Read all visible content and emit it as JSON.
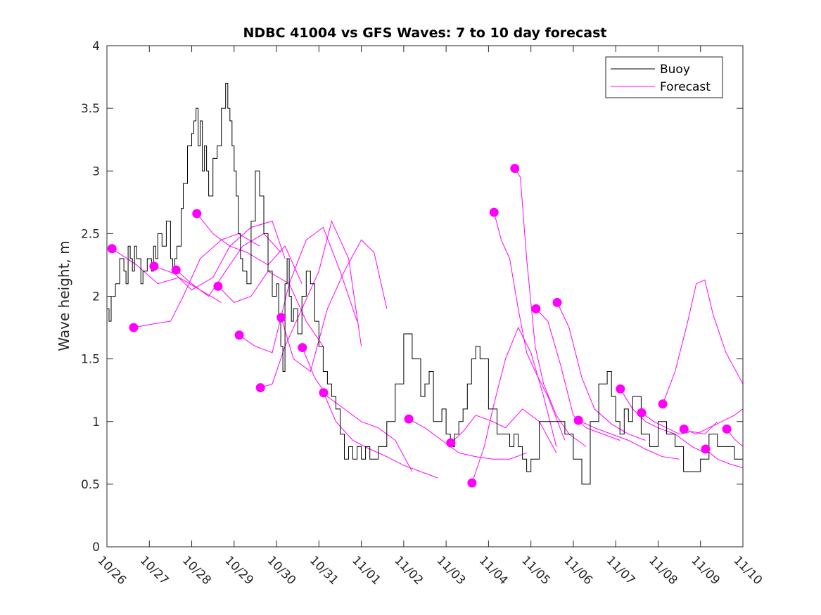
{
  "chart_data": {
    "type": "line",
    "title": "NDBC 41004 vs GFS Waves: 7 to 10 day forecast",
    "xlabel": "",
    "ylabel": "Wave height, m",
    "xlim": [
      0,
      15
    ],
    "ylim": [
      0,
      4
    ],
    "x_unit": "days since 10/26",
    "x_tick_labels": [
      "10/26",
      "10/27",
      "10/28",
      "10/29",
      "10/30",
      "10/31",
      "11/01",
      "11/02",
      "11/03",
      "11/04",
      "11/05",
      "11/06",
      "11/07",
      "11/08",
      "11/09",
      "11/10"
    ],
    "y_tick_labels": [
      "0",
      "0.5",
      "1",
      "1.5",
      "2",
      "2.5",
      "3",
      "3.5",
      "4"
    ],
    "y_ticks": [
      0,
      0.5,
      1,
      1.5,
      2,
      2.5,
      3,
      3.5,
      4
    ],
    "grid": false,
    "legend": {
      "position": "top-right",
      "entries": [
        {
          "label": "Buoy",
          "color": "#000000"
        },
        {
          "label": "Forecast",
          "color": "#ff00ff"
        }
      ]
    },
    "colors": {
      "buoy": "#000000",
      "forecast": "#ff00ff"
    },
    "series": [
      {
        "name": "Buoy",
        "x": [
          0,
          0.05,
          0.1,
          0.2,
          0.3,
          0.4,
          0.45,
          0.5,
          0.55,
          0.6,
          0.65,
          0.7,
          0.75,
          0.8,
          0.85,
          0.9,
          0.95,
          1.0,
          1.05,
          1.1,
          1.15,
          1.2,
          1.3,
          1.4,
          1.5,
          1.55,
          1.6,
          1.65,
          1.7,
          1.75,
          1.8,
          1.9,
          2.0,
          2.05,
          2.1,
          2.15,
          2.2,
          2.25,
          2.3,
          2.35,
          2.4,
          2.5,
          2.6,
          2.7,
          2.8,
          2.85,
          2.9,
          2.95,
          3.0,
          3.05,
          3.1,
          3.15,
          3.2,
          3.3,
          3.4,
          3.5,
          3.6,
          3.7,
          3.8,
          3.9,
          4.0,
          4.05,
          4.1,
          4.15,
          4.2,
          4.25,
          4.3,
          4.35,
          4.4,
          4.5,
          4.6,
          4.7,
          4.8,
          4.9,
          5.0,
          5.1,
          5.2,
          5.3,
          5.4,
          5.5,
          5.6,
          5.7,
          5.8,
          5.9,
          6.0,
          6.1,
          6.2,
          6.4,
          6.6,
          6.8,
          7.0,
          7.2,
          7.4,
          7.5,
          7.6,
          7.7,
          7.8,
          7.9,
          8.0,
          8.1,
          8.2,
          8.3,
          8.4,
          8.5,
          8.6,
          8.7,
          8.8,
          9.0,
          9.2,
          9.4,
          9.5,
          9.6,
          9.7,
          9.8,
          9.9,
          10.0,
          10.2,
          10.4,
          10.6,
          10.8,
          11.0,
          11.2,
          11.4,
          11.6,
          11.8,
          11.9,
          12.0,
          12.1,
          12.2,
          12.3,
          12.4,
          12.6,
          12.8,
          13.0,
          13.2,
          13.4,
          13.6,
          13.8,
          14.0,
          14.2,
          14.4,
          14.6,
          14.8,
          15.0
        ],
        "y": [
          1.9,
          1.8,
          2.0,
          2.1,
          2.3,
          2.2,
          2.1,
          2.4,
          2.3,
          2.2,
          2.4,
          2.3,
          2.3,
          2.1,
          2.2,
          2.2,
          2.3,
          2.3,
          2.2,
          2.4,
          2.3,
          2.5,
          2.4,
          2.6,
          2.3,
          2.2,
          2.3,
          2.4,
          2.4,
          2.7,
          2.9,
          3.2,
          3.3,
          3.4,
          3.5,
          3.2,
          3.4,
          3.0,
          3.2,
          3.0,
          2.8,
          3.1,
          3.2,
          3.5,
          3.7,
          3.5,
          3.4,
          3.2,
          3.0,
          2.8,
          2.5,
          2.3,
          2.2,
          2.1,
          2.6,
          3.0,
          2.8,
          2.5,
          2.2,
          2.0,
          2.1,
          1.8,
          1.6,
          1.4,
          2.1,
          2.3,
          2.0,
          1.8,
          1.9,
          1.7,
          2.0,
          2.2,
          2.1,
          1.8,
          1.6,
          1.4,
          1.3,
          1.2,
          1.1,
          0.9,
          0.7,
          0.8,
          0.7,
          0.8,
          0.7,
          0.8,
          0.7,
          0.8,
          1.0,
          1.3,
          1.7,
          1.5,
          1.2,
          1.3,
          1.4,
          1.0,
          1.0,
          1.1,
          0.9,
          0.8,
          0.9,
          1.0,
          1.1,
          1.3,
          1.5,
          1.6,
          1.5,
          1.1,
          0.9,
          0.9,
          0.8,
          0.9,
          0.8,
          0.7,
          0.6,
          0.7,
          1.0,
          1.0,
          1.0,
          0.9,
          0.7,
          0.5,
          1.0,
          1.3,
          1.4,
          1.2,
          1.0,
          0.9,
          1.1,
          1.0,
          1.2,
          0.9,
          0.8,
          1.0,
          0.9,
          0.8,
          0.6,
          0.6,
          0.7,
          0.9,
          0.8,
          0.8,
          0.7,
          0.8
        ]
      },
      {
        "name": "Forecast",
        "segments": [
          {
            "start": [
              0.12,
              2.38
            ],
            "x": [
              0.12,
              0.7,
              1.2,
              1.7,
              2.2,
              2.7
            ],
            "y": [
              2.38,
              2.25,
              2.1,
              2.15,
              2.05,
              1.95
            ]
          },
          {
            "start": [
              0.63,
              1.75
            ],
            "x": [
              0.63,
              1.1,
              1.5,
              1.8,
              2.2,
              2.7,
              3.1,
              3.6
            ],
            "y": [
              1.75,
              1.78,
              1.8,
              2.0,
              2.3,
              2.45,
              2.5,
              2.4
            ]
          },
          {
            "start": [
              1.11,
              2.24
            ],
            "x": [
              1.11,
              1.6,
              2.0,
              2.5,
              2.9,
              3.4,
              3.9,
              4.2
            ],
            "y": [
              2.24,
              2.18,
              2.05,
              2.15,
              2.4,
              2.55,
              2.6,
              2.3
            ]
          },
          {
            "start": [
              1.63,
              2.21
            ],
            "x": [
              1.63,
              2.0,
              2.4,
              2.8,
              3.2,
              3.7,
              4.1
            ],
            "y": [
              2.21,
              2.1,
              2.0,
              2.2,
              2.4,
              2.5,
              2.35
            ]
          },
          {
            "start": [
              2.12,
              2.66
            ],
            "x": [
              2.12,
              2.5,
              2.9,
              3.3,
              3.8,
              4.2,
              4.6
            ],
            "y": [
              2.66,
              2.5,
              2.4,
              2.35,
              2.25,
              2.4,
              2.1
            ]
          },
          {
            "start": [
              2.62,
              2.08
            ],
            "x": [
              2.62,
              3.0,
              3.4,
              3.8,
              4.3,
              4.7,
              5.1
            ],
            "y": [
              2.08,
              1.95,
              2.0,
              2.2,
              2.1,
              1.8,
              1.6
            ]
          },
          {
            "start": [
              3.12,
              1.69
            ],
            "x": [
              3.12,
              3.5,
              3.9,
              4.3,
              4.7,
              5.1,
              5.5,
              5.9
            ],
            "y": [
              1.69,
              1.6,
              1.55,
              2.1,
              2.45,
              2.55,
              2.2,
              1.8
            ]
          },
          {
            "start": [
              3.62,
              1.27
            ],
            "x": [
              3.62,
              3.9,
              4.2,
              4.6,
              5.0,
              5.3,
              5.7,
              6.0
            ],
            "y": [
              1.27,
              1.3,
              1.6,
              1.9,
              2.2,
              2.6,
              2.3,
              1.6
            ]
          },
          {
            "start": [
              4.11,
              1.83
            ],
            "x": [
              4.11,
              4.4,
              4.8,
              5.2,
              5.6,
              6.0,
              6.3,
              6.6
            ],
            "y": [
              1.83,
              1.5,
              1.4,
              1.9,
              2.2,
              2.45,
              2.35,
              1.9
            ]
          },
          {
            "start": [
              4.61,
              1.59
            ],
            "x": [
              4.61,
              4.9,
              5.2,
              5.6,
              6.0,
              6.4,
              6.8,
              7.2
            ],
            "y": [
              1.59,
              1.35,
              1.2,
              1.1,
              1.0,
              0.95,
              0.85,
              0.6
            ]
          },
          {
            "start": [
              5.11,
              1.23
            ],
            "x": [
              5.11,
              5.4,
              5.8,
              6.2,
              6.6,
              7.0,
              7.4,
              7.8
            ],
            "y": [
              1.23,
              1.0,
              0.85,
              0.78,
              0.72,
              0.65,
              0.6,
              0.55
            ]
          },
          {
            "start": [
              7.12,
              1.02
            ],
            "x": [
              7.12,
              7.5,
              7.9,
              8.3,
              8.7,
              9.1,
              9.5,
              9.9
            ],
            "y": [
              1.02,
              0.95,
              0.85,
              0.75,
              0.72,
              0.7,
              0.7,
              0.75
            ]
          },
          {
            "start": [
              8.11,
              0.83
            ],
            "x": [
              8.11,
              8.4,
              8.7,
              9.1,
              9.4,
              9.8,
              10.2,
              10.6
            ],
            "y": [
              0.83,
              0.92,
              1.05,
              1.0,
              0.95,
              1.1,
              1.0,
              0.75
            ]
          },
          {
            "start": [
              8.61,
              0.51
            ],
            "x": [
              8.61,
              8.9,
              9.1,
              9.4,
              9.7,
              10.0,
              10.3,
              10.6
            ],
            "y": [
              0.51,
              0.8,
              1.1,
              1.5,
              1.75,
              1.55,
              1.2,
              0.8
            ]
          },
          {
            "start": [
              9.13,
              2.67
            ],
            "x": [
              9.13,
              9.3,
              9.5,
              9.7,
              9.9,
              10.1,
              10.4,
              10.8
            ],
            "y": [
              2.67,
              2.45,
              2.3,
              1.9,
              1.55,
              1.4,
              1.2,
              0.85
            ]
          },
          {
            "start": [
              9.62,
              3.02
            ],
            "x": [
              9.62,
              9.75,
              9.9,
              10.1,
              10.3,
              10.6,
              10.9,
              11.3
            ],
            "y": [
              3.02,
              2.95,
              2.3,
              1.6,
              1.3,
              1.05,
              0.9,
              0.8
            ]
          },
          {
            "start": [
              10.12,
              1.9
            ],
            "x": [
              10.12,
              10.4,
              10.7,
              11.0,
              11.3,
              11.7,
              12.1
            ],
            "y": [
              1.9,
              1.8,
              1.45,
              1.05,
              0.95,
              0.9,
              0.85
            ]
          },
          {
            "start": [
              10.62,
              1.95
            ],
            "x": [
              10.62,
              10.9,
              11.2,
              11.5,
              11.9,
              12.3,
              12.7
            ],
            "y": [
              1.95,
              1.75,
              1.35,
              1.1,
              0.98,
              0.9,
              0.85
            ]
          },
          {
            "start": [
              11.12,
              1.01
            ],
            "x": [
              11.12,
              11.5,
              11.9,
              12.3,
              12.7,
              13.1,
              13.5
            ],
            "y": [
              1.01,
              0.95,
              0.9,
              0.85,
              0.78,
              0.72,
              0.7
            ]
          },
          {
            "start": [
              12.11,
              1.26
            ],
            "x": [
              12.11,
              12.4,
              12.7,
              13.0,
              13.4,
              13.8,
              14.1
            ],
            "y": [
              1.26,
              1.1,
              1.0,
              0.95,
              0.9,
              0.8,
              0.75
            ]
          },
          {
            "start": [
              12.61,
              1.07
            ],
            "x": [
              12.61,
              12.9,
              13.2,
              13.5,
              13.8,
              14.1,
              14.4
            ],
            "y": [
              1.07,
              1.0,
              0.95,
              0.9,
              0.92,
              0.9,
              1.0
            ]
          },
          {
            "start": [
              13.11,
              1.14
            ],
            "x": [
              13.11,
              13.4,
              13.7,
              13.9,
              14.1,
              14.3,
              14.6,
              15.0
            ],
            "y": [
              1.14,
              1.4,
              1.8,
              2.1,
              2.13,
              1.85,
              1.55,
              1.3
            ]
          },
          {
            "start": [
              13.61,
              0.94
            ],
            "x": [
              13.61,
              13.9,
              14.2,
              14.5,
              14.8,
              15.0
            ],
            "y": [
              0.94,
              0.9,
              0.95,
              1.0,
              1.05,
              1.1
            ]
          },
          {
            "start": [
              14.12,
              0.78
            ],
            "x": [
              14.12,
              14.4,
              14.7,
              15.0
            ],
            "y": [
              0.78,
              0.7,
              0.66,
              0.63
            ]
          },
          {
            "start": [
              14.62,
              0.94
            ],
            "x": [
              14.62,
              14.8,
              15.0
            ],
            "y": [
              0.94,
              0.86,
              0.8
            ]
          }
        ]
      }
    ]
  }
}
